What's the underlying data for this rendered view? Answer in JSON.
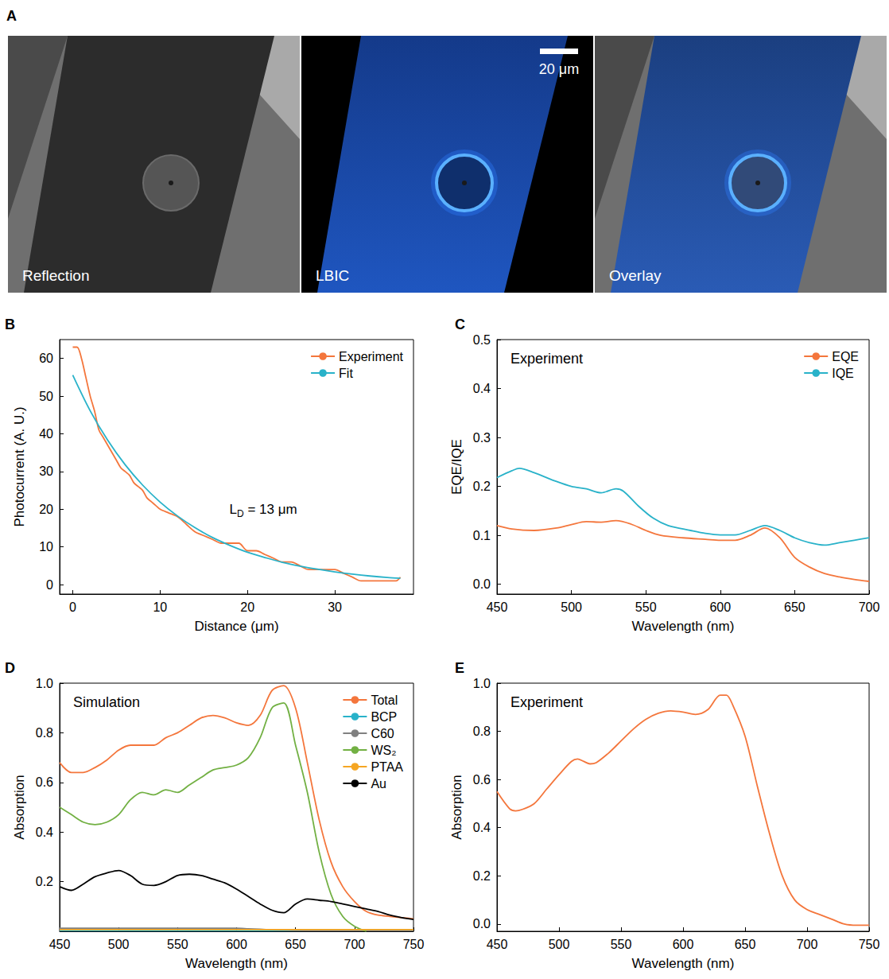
{
  "image_panel": {
    "panel": "A",
    "images": [
      "Reflection",
      "LBIC",
      "Overlay"
    ],
    "scale_bar": "20 μm"
  },
  "chart_data": [
    {
      "panel": "B",
      "type": "line",
      "xlabel": "Distance (μm)",
      "ylabel": "Photocurrent (A. U.)",
      "xlim": [
        -1.5,
        39
      ],
      "xticks": [
        0,
        10,
        20,
        30
      ],
      "ylim": [
        -2.5,
        65
      ],
      "yticks": [
        0,
        10,
        20,
        30,
        40,
        50,
        60
      ],
      "grid": false,
      "legend": "upper right",
      "annotation": {
        "parts": [
          {
            "text": "L"
          },
          {
            "text": "D",
            "sub": true
          },
          {
            "text": " = 13 μm"
          }
        ]
      },
      "series": [
        {
          "name": "Experiment",
          "color": "#f4763c",
          "x": [
            0,
            0.5,
            1,
            1.5,
            2,
            2.5,
            3,
            3.5,
            4,
            4.5,
            5,
            5.5,
            6,
            6.5,
            7,
            7.5,
            8,
            8.5,
            9,
            9.5,
            10,
            11,
            12,
            13,
            14,
            15,
            16,
            17,
            18,
            19,
            20,
            21,
            22,
            23,
            24,
            25,
            26,
            27,
            28,
            29,
            30,
            31,
            32,
            33,
            34,
            35,
            36,
            37,
            37.5
          ],
          "values": [
            63,
            63,
            60,
            55,
            50,
            46,
            41,
            39,
            37,
            35,
            33,
            31,
            30,
            29,
            27,
            26,
            25,
            23,
            22,
            21,
            20,
            19,
            18,
            16,
            14,
            13,
            12,
            11,
            11,
            11,
            9,
            9,
            8,
            7,
            6,
            6,
            5,
            4,
            4,
            4,
            4,
            3,
            2,
            1,
            1,
            1,
            1,
            1,
            2
          ]
        },
        {
          "name": "Fit",
          "color": "#29b2c9",
          "x": [
            0,
            2,
            4,
            6,
            8,
            10,
            12,
            14,
            16,
            18,
            20,
            22,
            24,
            26,
            28,
            30,
            32,
            34,
            36,
            37.5
          ],
          "values": [
            55.6,
            46.1,
            38.3,
            31.8,
            26.4,
            21.9,
            18.2,
            15.1,
            12.5,
            10.4,
            8.6,
            7.2,
            5.9,
            4.9,
            4.1,
            3.4,
            2.8,
            2.3,
            1.9,
            1.7
          ]
        }
      ]
    },
    {
      "panel": "C",
      "type": "line",
      "title": "Experiment",
      "xlabel": "Wavelength (nm)",
      "ylabel": "EQE/IQE",
      "xlim": [
        450,
        700
      ],
      "xticks": [
        450,
        500,
        550,
        600,
        650,
        700
      ],
      "ylim": [
        -0.02,
        0.5
      ],
      "yticks": [
        {
          "value": 0,
          "label": "0.0"
        },
        0.1,
        0.2,
        0.3,
        0.4,
        0.5
      ],
      "grid": false,
      "legend": "upper right",
      "series": [
        {
          "name": "EQE",
          "color": "#f4763c",
          "x": [
            450,
            460,
            475,
            490,
            500,
            510,
            520,
            530,
            540,
            550,
            560,
            575,
            590,
            600,
            610,
            620,
            630,
            640,
            650,
            660,
            670,
            680,
            690,
            700
          ],
          "values": [
            0.12,
            0.113,
            0.11,
            0.115,
            0.122,
            0.128,
            0.127,
            0.13,
            0.123,
            0.11,
            0.1,
            0.095,
            0.092,
            0.09,
            0.09,
            0.1,
            0.115,
            0.095,
            0.055,
            0.035,
            0.022,
            0.015,
            0.01,
            0.006
          ]
        },
        {
          "name": "IQE",
          "color": "#29b2c9",
          "x": [
            450,
            460,
            465,
            475,
            490,
            500,
            510,
            520,
            530,
            535,
            545,
            555,
            565,
            580,
            590,
            600,
            610,
            620,
            630,
            640,
            650,
            660,
            670,
            680,
            690,
            700
          ],
          "values": [
            0.218,
            0.232,
            0.237,
            0.228,
            0.21,
            0.2,
            0.195,
            0.187,
            0.195,
            0.19,
            0.16,
            0.135,
            0.12,
            0.11,
            0.104,
            0.101,
            0.101,
            0.11,
            0.12,
            0.11,
            0.095,
            0.085,
            0.08,
            0.085,
            0.09,
            0.095
          ]
        }
      ]
    },
    {
      "panel": "D",
      "type": "line",
      "title": "Simulation",
      "xlabel": "Wavelength (nm)",
      "ylabel": "Absorption",
      "xlim": [
        450,
        750
      ],
      "xticks": [
        450,
        500,
        550,
        600,
        650,
        700,
        750
      ],
      "ylim": [
        0,
        1.0
      ],
      "yticks": [
        0.2,
        0.4,
        0.6,
        0.8,
        {
          "value": 1.0,
          "label": "1.0"
        }
      ],
      "grid": false,
      "legend": "upper right",
      "x": [
        450,
        460,
        470,
        480,
        490,
        500,
        510,
        520,
        530,
        540,
        550,
        560,
        570,
        580,
        590,
        600,
        610,
        620,
        630,
        640,
        650,
        660,
        670,
        680,
        690,
        700,
        710,
        720,
        730,
        740,
        750
      ],
      "series": [
        {
          "name": "Total",
          "color": "#f4763c",
          "values": [
            0.68,
            0.64,
            0.64,
            0.66,
            0.69,
            0.73,
            0.75,
            0.75,
            0.75,
            0.78,
            0.8,
            0.83,
            0.86,
            0.87,
            0.86,
            0.84,
            0.83,
            0.87,
            0.97,
            0.99,
            0.9,
            0.68,
            0.45,
            0.28,
            0.18,
            0.12,
            0.08,
            0.065,
            0.06,
            0.055,
            0.05
          ]
        },
        {
          "name": "BCP",
          "color": "#29b2c9",
          "values": [
            0.003,
            0.003,
            0.003,
            0.003,
            0.003,
            0.003,
            0.003,
            0.003,
            0.003,
            0.003,
            0.003,
            0.003,
            0.003,
            0.003,
            0.003,
            0.003,
            0.003,
            0.003,
            0.003,
            0.003,
            0.003,
            0.003,
            0.003,
            0.003,
            0.003,
            0.003,
            0.003,
            0.003,
            0.003,
            0.003,
            0.003
          ]
        },
        {
          "name": "C60",
          "color": "#808080",
          "values": [
            0.012,
            0.012,
            0.012,
            0.012,
            0.012,
            0.012,
            0.012,
            0.012,
            0.012,
            0.012,
            0.012,
            0.012,
            0.012,
            0.012,
            0.012,
            0.012,
            0.01,
            0.008,
            0.006,
            0.005,
            0.004,
            0.003,
            0.003,
            0.003,
            0.003,
            0.003,
            0.003,
            0.003,
            0.003,
            0.003,
            0.003
          ]
        },
        {
          "name": "WS₂",
          "color": "#72b043",
          "values": [
            0.5,
            0.47,
            0.44,
            0.43,
            0.44,
            0.47,
            0.53,
            0.56,
            0.55,
            0.57,
            0.56,
            0.59,
            0.62,
            0.65,
            0.66,
            0.67,
            0.7,
            0.78,
            0.9,
            0.92,
            0.75,
            0.56,
            0.32,
            0.15,
            0.06,
            0.02,
            0.0,
            null,
            null,
            null,
            null
          ]
        },
        {
          "name": "PTAA",
          "color": "#f5a623",
          "values": [
            0.007,
            0.007,
            0.007,
            0.007,
            0.007,
            0.007,
            0.007,
            0.007,
            0.007,
            0.007,
            0.007,
            0.007,
            0.007,
            0.007,
            0.007,
            0.007,
            0.007,
            0.007,
            0.007,
            0.007,
            0.007,
            0.007,
            0.007,
            0.007,
            0.007,
            0.007,
            0.007,
            0.007,
            0.007,
            0.007,
            0.007
          ]
        },
        {
          "name": "Au",
          "color": "#000000",
          "values": [
            0.18,
            0.165,
            0.19,
            0.22,
            0.235,
            0.245,
            0.225,
            0.19,
            0.185,
            0.2,
            0.225,
            0.23,
            0.225,
            0.21,
            0.195,
            0.17,
            0.14,
            0.11,
            0.085,
            0.075,
            0.11,
            0.13,
            0.125,
            0.12,
            0.11,
            0.1,
            0.09,
            0.08,
            0.065,
            0.055,
            0.048
          ]
        }
      ]
    },
    {
      "panel": "E",
      "type": "line",
      "title": "Experiment",
      "xlabel": "Wavelength (nm)",
      "ylabel": "Absorption",
      "xlim": [
        450,
        750
      ],
      "xticks": [
        450,
        500,
        550,
        600,
        650,
        700,
        750
      ],
      "ylim": [
        -0.03,
        1.0
      ],
      "yticks": [
        {
          "value": 0,
          "label": "0.0"
        },
        0.2,
        0.4,
        0.6,
        0.8,
        {
          "value": 1.0,
          "label": "1.0"
        }
      ],
      "grid": false,
      "color": "#f4763c",
      "x": [
        450,
        460,
        465,
        470,
        480,
        490,
        500,
        510,
        515,
        520,
        525,
        530,
        540,
        550,
        560,
        570,
        580,
        590,
        600,
        610,
        620,
        630,
        635,
        640,
        650,
        660,
        670,
        680,
        690,
        700,
        710,
        720,
        730,
        740,
        750
      ],
      "values": [
        0.55,
        0.48,
        0.47,
        0.475,
        0.5,
        0.56,
        0.62,
        0.675,
        0.685,
        0.675,
        0.665,
        0.67,
        0.71,
        0.76,
        0.81,
        0.85,
        0.875,
        0.885,
        0.88,
        0.87,
        0.89,
        0.95,
        0.95,
        0.91,
        0.78,
        0.57,
        0.37,
        0.2,
        0.1,
        0.06,
        0.04,
        0.02,
        0.0,
        -0.005,
        -0.005
      ]
    }
  ]
}
